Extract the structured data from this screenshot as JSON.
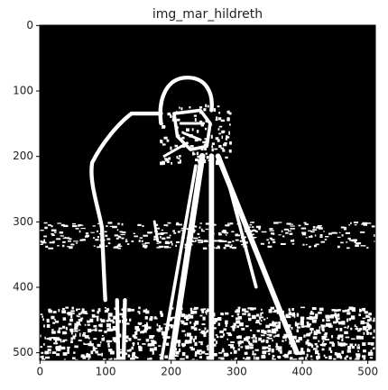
{
  "chart_data": {
    "type": "image",
    "title": "img_mar_hildreth",
    "xlim": [
      -0.5,
      511.5
    ],
    "ylim": [
      511.5,
      -0.5
    ],
    "xticks": [
      0,
      100,
      200,
      300,
      400,
      500
    ],
    "yticks": [
      0,
      100,
      200,
      300,
      400,
      500
    ]
  }
}
